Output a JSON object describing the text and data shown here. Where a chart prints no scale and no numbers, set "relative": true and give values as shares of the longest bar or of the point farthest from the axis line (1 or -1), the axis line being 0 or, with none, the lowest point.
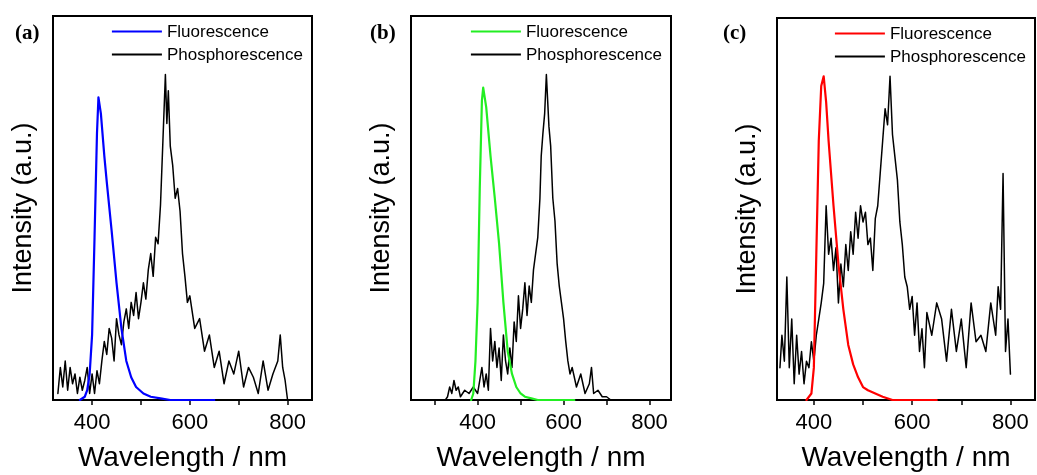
{
  "chart_data": [
    {
      "type": "line",
      "title": "(a)",
      "xlabel": "Wavelength / nm",
      "ylabel": "Intensity (a.u.)",
      "relative": true,
      "xlim": [
        320,
        850
      ],
      "xticks": [
        400,
        {
          "value": 500,
          "label": null
        },
        600,
        {
          "value": 700,
          "label": null
        },
        800
      ],
      "legend": "top right",
      "grid": false,
      "marker": "none",
      "line_style": "solid",
      "series": [
        {
          "name": "Fluorescence",
          "color": "#0000ff",
          "x": [
            375,
            385,
            390,
            395,
            400,
            405,
            410,
            413,
            418,
            425,
            430,
            440,
            450,
            460,
            470,
            480,
            490,
            505,
            520,
            540,
            560,
            600,
            650
          ],
          "values": [
            0,
            0.01,
            0.03,
            0.08,
            0.2,
            0.5,
            0.82,
            0.93,
            0.88,
            0.75,
            0.67,
            0.52,
            0.36,
            0.22,
            0.12,
            0.07,
            0.04,
            0.02,
            0.01,
            0.005,
            0,
            0,
            0
          ]
        },
        {
          "name": "Phosphorescence",
          "color": "#000000",
          "x": [
            330,
            335,
            340,
            345,
            350,
            355,
            360,
            365,
            370,
            375,
            380,
            385,
            390,
            395,
            400,
            405,
            410,
            415,
            420,
            425,
            430,
            435,
            440,
            445,
            450,
            455,
            460,
            465,
            470,
            475,
            480,
            485,
            490,
            495,
            500,
            505,
            510,
            515,
            520,
            525,
            530,
            535,
            540,
            545,
            550,
            553,
            556,
            560,
            565,
            570,
            575,
            580,
            585,
            590,
            595,
            600,
            610,
            620,
            630,
            640,
            650,
            660,
            670,
            680,
            690,
            700,
            710,
            720,
            730,
            740,
            750,
            760,
            770,
            780,
            785,
            790,
            795,
            800
          ],
          "values": [
            0.02,
            0.1,
            0.04,
            0.12,
            0.03,
            0.1,
            0.05,
            0.08,
            0.02,
            0.07,
            0.03,
            0.06,
            0.1,
            0.02,
            0.08,
            0.02,
            0.09,
            0.05,
            0.12,
            0.18,
            0.14,
            0.22,
            0.19,
            0.12,
            0.25,
            0.2,
            0.17,
            0.24,
            0.28,
            0.22,
            0.3,
            0.26,
            0.33,
            0.25,
            0.3,
            0.36,
            0.31,
            0.4,
            0.45,
            0.38,
            0.5,
            0.48,
            0.6,
            0.8,
            1.0,
            0.85,
            0.95,
            0.78,
            0.72,
            0.62,
            0.65,
            0.58,
            0.45,
            0.38,
            0.3,
            0.32,
            0.22,
            0.25,
            0.15,
            0.2,
            0.1,
            0.15,
            0.05,
            0.12,
            0.08,
            0.15,
            0.04,
            0.1,
            0.07,
            0.02,
            0.12,
            0.03,
            0.08,
            0.12,
            0.2,
            0.1,
            0.06,
            0
          ]
        }
      ]
    },
    {
      "type": "line",
      "title": "(b)",
      "xlabel": "Wavelength / nm",
      "ylabel": "Intensity (a.u.)",
      "relative": true,
      "xlim": [
        245,
        850
      ],
      "xticks": [
        {
          "value": 300,
          "label": null
        },
        400,
        {
          "value": 500,
          "label": null
        },
        600,
        {
          "value": 700,
          "label": null
        },
        800
      ],
      "legend": "top right",
      "grid": false,
      "marker": "none",
      "line_style": "solid",
      "series": [
        {
          "name": "Fluorescence",
          "color": "#22ee22",
          "x": [
            385,
            390,
            395,
            400,
            405,
            410,
            413,
            420,
            430,
            440,
            450,
            460,
            470,
            480,
            490,
            500,
            510,
            525,
            540,
            580,
            625
          ],
          "values": [
            0,
            0.02,
            0.12,
            0.3,
            0.65,
            0.92,
            0.96,
            0.9,
            0.75,
            0.62,
            0.48,
            0.3,
            0.15,
            0.08,
            0.04,
            0.02,
            0.01,
            0.005,
            0,
            0,
            0
          ]
        },
        {
          "name": "Phosphorescence",
          "color": "#000000",
          "x": [
            325,
            330,
            335,
            340,
            345,
            350,
            355,
            360,
            370,
            380,
            390,
            400,
            405,
            410,
            415,
            420,
            425,
            430,
            435,
            440,
            445,
            450,
            455,
            460,
            465,
            470,
            475,
            480,
            485,
            490,
            495,
            500,
            505,
            510,
            515,
            520,
            525,
            530,
            535,
            540,
            545,
            548,
            552,
            556,
            560,
            563,
            566,
            570,
            575,
            580,
            585,
            590,
            595,
            600,
            605,
            610,
            615,
            620,
            630,
            640,
            650,
            660,
            665,
            670,
            680,
            690,
            700,
            710
          ],
          "values": [
            0,
            0.01,
            0.04,
            0.02,
            0.06,
            0.03,
            0.04,
            0.01,
            0.03,
            0.02,
            0.04,
            0.02,
            0.06,
            0.1,
            0.04,
            0.08,
            0.03,
            0.22,
            0.12,
            0.18,
            0.1,
            0.16,
            0.06,
            0.2,
            0.12,
            0.08,
            0.16,
            0.1,
            0.24,
            0.18,
            0.32,
            0.22,
            0.28,
            0.36,
            0.26,
            0.35,
            0.3,
            0.4,
            0.45,
            0.5,
            0.62,
            0.75,
            0.82,
            0.88,
            1.0,
            0.92,
            0.84,
            0.78,
            0.62,
            0.55,
            0.42,
            0.35,
            0.3,
            0.25,
            0.18,
            0.12,
            0.08,
            0.1,
            0.04,
            0.08,
            0.02,
            0.05,
            0.1,
            0.02,
            0.03,
            0.01,
            0.01,
            0
          ]
        }
      ]
    },
    {
      "type": "line",
      "title": "(c)",
      "xlabel": "Wavelength / nm",
      "ylabel": "Intensity (a.u.)",
      "relative": true,
      "xlim": [
        325,
        850
      ],
      "xticks": [
        400,
        {
          "value": 500,
          "label": null
        },
        600,
        {
          "value": 700,
          "label": null
        },
        800
      ],
      "legend": "top right",
      "grid": false,
      "marker": "none",
      "line_style": "solid",
      "series": [
        {
          "name": "Fluorescence",
          "color": "#ff0000",
          "x": [
            385,
            395,
            400,
            405,
            410,
            415,
            420,
            425,
            430,
            440,
            450,
            460,
            470,
            480,
            490,
            500,
            510,
            525,
            540,
            560,
            600,
            650
          ],
          "values": [
            0,
            0.02,
            0.1,
            0.45,
            0.8,
            0.97,
            1.0,
            0.92,
            0.8,
            0.6,
            0.42,
            0.28,
            0.17,
            0.11,
            0.07,
            0.04,
            0.03,
            0.02,
            0.01,
            0,
            0,
            0
          ]
        },
        {
          "name": "Phosphorescence",
          "color": "#000000",
          "x": [
            331,
            335,
            340,
            345,
            350,
            355,
            360,
            365,
            370,
            375,
            380,
            385,
            390,
            395,
            400,
            405,
            410,
            415,
            420,
            425,
            430,
            435,
            440,
            445,
            450,
            455,
            460,
            465,
            470,
            475,
            480,
            485,
            490,
            495,
            500,
            505,
            510,
            515,
            520,
            525,
            530,
            535,
            540,
            545,
            550,
            555,
            560,
            565,
            570,
            575,
            580,
            585,
            590,
            595,
            600,
            605,
            610,
            615,
            620,
            625,
            630,
            640,
            650,
            660,
            670,
            680,
            690,
            700,
            710,
            720,
            730,
            740,
            750,
            760,
            770,
            775,
            780,
            785,
            790,
            795,
            800
          ],
          "values": [
            0.1,
            0.2,
            0.12,
            0.38,
            0.1,
            0.25,
            0.05,
            0.2,
            0.08,
            0.15,
            0.05,
            0.12,
            0.1,
            0.18,
            0.12,
            0.2,
            0.25,
            0.3,
            0.36,
            0.6,
            0.45,
            0.5,
            0.4,
            0.47,
            0.3,
            0.42,
            0.35,
            0.48,
            0.4,
            0.52,
            0.45,
            0.58,
            0.5,
            0.6,
            0.55,
            0.58,
            0.48,
            0.5,
            0.4,
            0.56,
            0.6,
            0.7,
            0.8,
            0.9,
            0.85,
            1.0,
            0.82,
            0.75,
            0.68,
            0.55,
            0.48,
            0.38,
            0.35,
            0.28,
            0.32,
            0.2,
            0.3,
            0.15,
            0.22,
            0.1,
            0.27,
            0.2,
            0.3,
            0.25,
            0.12,
            0.28,
            0.15,
            0.25,
            0.1,
            0.3,
            0.18,
            0.2,
            0.15,
            0.3,
            0.2,
            0.35,
            0.28,
            0.7,
            0.15,
            0.25,
            0.08
          ]
        }
      ]
    }
  ]
}
